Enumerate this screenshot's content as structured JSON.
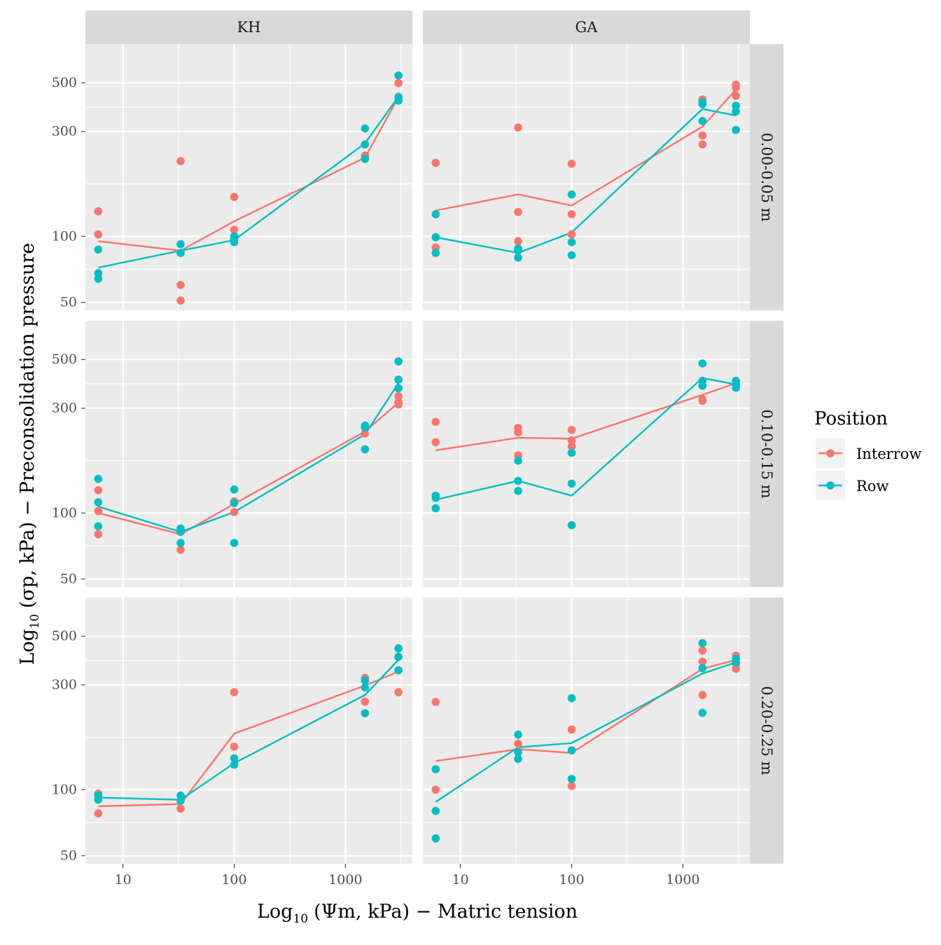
{
  "colors": {
    "Interrow": "#F8766D",
    "Row": "#00BFC4",
    "panel_bg": "#EBEBEB",
    "strip_bg": "#D9D9D9",
    "grid": "#FFFFFF"
  },
  "axis_text": {
    "x_prefix": "Log",
    "x_sub": "10",
    "x_rest": "(Ψm, kPa) − Matric tension",
    "y_prefix": "Log",
    "y_sub": "10",
    "y_rest": "(σp, kPa) − Preconsolidation pressure"
  },
  "legend": {
    "title": "Position",
    "items": [
      "Interrow",
      "Row"
    ]
  },
  "chart_data": {
    "type": "scatter",
    "facet_columns": [
      "KH",
      "GA"
    ],
    "facet_rows": [
      "0.00-0.05 m",
      "0.10-0.15 m",
      "0.20-0.25 m"
    ],
    "x_scale": "log10",
    "y_scale": "log10",
    "xlim": [
      4.6,
      4000
    ],
    "ylim": [
      46,
      750
    ],
    "x_ticks": [
      10,
      100,
      1000
    ],
    "x_tick_labels": [
      "10",
      "100",
      "1000"
    ],
    "y_ticks": [
      50,
      100,
      300,
      500
    ],
    "y_tick_labels": [
      "50",
      "100",
      "300",
      "500"
    ],
    "x_levels": [
      6,
      33,
      100,
      1500,
      3000
    ],
    "series_names": [
      "Interrow",
      "Row"
    ],
    "panels": [
      {
        "col": "KH",
        "row": "0.00-0.05 m",
        "points": {
          "Interrow": [
            [
              6,
              130
            ],
            [
              6,
              102
            ],
            [
              33,
              220
            ],
            [
              33,
              60
            ],
            [
              33,
              51
            ],
            [
              100,
              151
            ],
            [
              100,
              107
            ],
            [
              1500,
              233
            ],
            [
              3000,
              498
            ],
            [
              3000,
              432
            ]
          ],
          "Row": [
            [
              6,
              87
            ],
            [
              6,
              68
            ],
            [
              6,
              64
            ],
            [
              33,
              92
            ],
            [
              33,
              84
            ],
            [
              100,
              100
            ],
            [
              100,
              97
            ],
            [
              100,
              94
            ],
            [
              1500,
              310
            ],
            [
              1500,
              262
            ],
            [
              1500,
              225
            ],
            [
              3000,
              540
            ],
            [
              3000,
              415
            ],
            [
              3000,
              430
            ]
          ]
        },
        "lines": {
          "Interrow": [
            [
              6,
              95
            ],
            [
              33,
              86
            ],
            [
              100,
              117
            ],
            [
              1500,
              228
            ],
            [
              3000,
              430
            ]
          ],
          "Row": [
            [
              6,
              72
            ],
            [
              33,
              86
            ],
            [
              100,
              96
            ],
            [
              1500,
              265
            ],
            [
              3000,
              432
            ]
          ]
        }
      },
      {
        "col": "GA",
        "row": "0.00-0.05 m",
        "points": {
          "Interrow": [
            [
              6,
              216
            ],
            [
              6,
              89
            ],
            [
              33,
              313
            ],
            [
              33,
              129
            ],
            [
              33,
              95
            ],
            [
              100,
              214
            ],
            [
              100,
              126
            ],
            [
              100,
              102
            ],
            [
              1500,
              420
            ],
            [
              1500,
              288
            ],
            [
              1500,
              262
            ],
            [
              3000,
              490
            ],
            [
              3000,
              475
            ],
            [
              3000,
              436
            ]
          ],
          "Row": [
            [
              6,
              126
            ],
            [
              6,
              99
            ],
            [
              6,
              84
            ],
            [
              33,
              88
            ],
            [
              33,
              86
            ],
            [
              33,
              80
            ],
            [
              100,
              155
            ],
            [
              100,
              94
            ],
            [
              100,
              82
            ],
            [
              1500,
              408
            ],
            [
              1500,
              400
            ],
            [
              1500,
              335
            ],
            [
              3000,
              393
            ],
            [
              3000,
              370
            ],
            [
              3000,
              305
            ]
          ]
        },
        "lines": {
          "Interrow": [
            [
              6,
              131
            ],
            [
              33,
              155
            ],
            [
              100,
              138
            ],
            [
              1500,
              316
            ],
            [
              3000,
              465
            ]
          ],
          "Row": [
            [
              6,
              99
            ],
            [
              33,
              84
            ],
            [
              100,
              104
            ],
            [
              1500,
              380
            ],
            [
              3000,
              355
            ]
          ]
        }
      },
      {
        "col": "KH",
        "row": "0.10-0.15 m",
        "points": {
          "Interrow": [
            [
              6,
              127
            ],
            [
              6,
              102
            ],
            [
              6,
              80
            ],
            [
              33,
              68
            ],
            [
              100,
              113
            ],
            [
              100,
              101
            ],
            [
              1500,
              230
            ],
            [
              3000,
              340
            ],
            [
              3000,
              320
            ],
            [
              3000,
              312
            ]
          ],
          "Row": [
            [
              6,
              143
            ],
            [
              6,
              112
            ],
            [
              6,
              87
            ],
            [
              33,
              85
            ],
            [
              33,
              82
            ],
            [
              33,
              73
            ],
            [
              100,
              128
            ],
            [
              100,
              111
            ],
            [
              100,
              73
            ],
            [
              1500,
              250
            ],
            [
              1500,
              245
            ],
            [
              1500,
              195
            ],
            [
              3000,
              490
            ],
            [
              3000,
              405
            ],
            [
              3000,
              370
            ]
          ]
        },
        "lines": {
          "Interrow": [
            [
              6,
              100
            ],
            [
              33,
              80
            ],
            [
              100,
              110
            ],
            [
              1500,
              235
            ],
            [
              3000,
              318
            ]
          ],
          "Row": [
            [
              6,
              107
            ],
            [
              33,
              82
            ],
            [
              100,
              101
            ],
            [
              1500,
              228
            ],
            [
              3000,
              390
            ]
          ]
        }
      },
      {
        "col": "GA",
        "row": "0.10-0.15 m",
        "points": {
          "Interrow": [
            [
              6,
              260
            ],
            [
              6,
              210
            ],
            [
              33,
              244
            ],
            [
              33,
              233
            ],
            [
              33,
              183
            ],
            [
              100,
              239
            ],
            [
              100,
              214
            ],
            [
              100,
              201
            ],
            [
              1500,
              330
            ],
            [
              1500,
              324
            ]
          ],
          "Row": [
            [
              6,
              120
            ],
            [
              6,
              117
            ],
            [
              6,
              105
            ],
            [
              33,
              173
            ],
            [
              33,
              140
            ],
            [
              33,
              126
            ],
            [
              100,
              188
            ],
            [
              100,
              136
            ],
            [
              100,
              88
            ],
            [
              1500,
              480
            ],
            [
              1500,
              400
            ],
            [
              1500,
              380
            ],
            [
              3000,
              400
            ],
            [
              3000,
              385
            ],
            [
              3000,
              372
            ]
          ]
        },
        "lines": {
          "Interrow": [
            [
              6,
              193
            ],
            [
              33,
              220
            ],
            [
              100,
              218
            ],
            [
              1500,
              345
            ],
            [
              3000,
              390
            ]
          ],
          "Row": [
            [
              6,
              115
            ],
            [
              33,
              140
            ],
            [
              100,
              120
            ],
            [
              1500,
              412
            ],
            [
              3000,
              385
            ]
          ]
        }
      },
      {
        "col": "KH",
        "row": "0.20-0.25 m",
        "points": {
          "Interrow": [
            [
              6,
              96
            ],
            [
              6,
              78
            ],
            [
              33,
              82
            ],
            [
              100,
              278
            ],
            [
              100,
              157
            ],
            [
              1500,
              323
            ],
            [
              1500,
              252
            ],
            [
              3000,
              350
            ],
            [
              3000,
              278
            ]
          ],
          "Row": [
            [
              6,
              94
            ],
            [
              6,
              90
            ],
            [
              33,
              94
            ],
            [
              33,
              89
            ],
            [
              100,
              139
            ],
            [
              100,
              130
            ],
            [
              1500,
              314
            ],
            [
              1500,
              292
            ],
            [
              1500,
              223
            ],
            [
              3000,
              440
            ],
            [
              3000,
              403
            ],
            [
              3000,
              350
            ]
          ]
        },
        "lines": {
          "Interrow": [
            [
              6,
              84
            ],
            [
              33,
              86
            ],
            [
              100,
              180
            ],
            [
              1500,
              298
            ],
            [
              3000,
              345
            ]
          ],
          "Row": [
            [
              6,
              92
            ],
            [
              33,
              90
            ],
            [
              100,
              132
            ],
            [
              1500,
              270
            ],
            [
              3000,
              390
            ]
          ]
        }
      },
      {
        "col": "GA",
        "row": "0.20-0.25 m",
        "points": {
          "Interrow": [
            [
              6,
              251
            ],
            [
              6,
              100
            ],
            [
              33,
              162
            ],
            [
              33,
              149
            ],
            [
              100,
              188
            ],
            [
              100,
              104
            ],
            [
              1500,
              430
            ],
            [
              1500,
              383
            ],
            [
              1500,
              270
            ],
            [
              3000,
              408
            ],
            [
              3000,
              375
            ],
            [
              3000,
              355
            ]
          ],
          "Row": [
            [
              6,
              124
            ],
            [
              6,
              80
            ],
            [
              6,
              60
            ],
            [
              33,
              178
            ],
            [
              33,
              148
            ],
            [
              33,
              138
            ],
            [
              100,
              261
            ],
            [
              100,
              151
            ],
            [
              100,
              112
            ],
            [
              1500,
              465
            ],
            [
              1500,
              358
            ],
            [
              1500,
              224
            ],
            [
              3000,
              395
            ],
            [
              3000,
              380
            ]
          ]
        },
        "lines": {
          "Interrow": [
            [
              6,
              135
            ],
            [
              33,
              153
            ],
            [
              100,
              147
            ],
            [
              1500,
              355
            ],
            [
              3000,
              390
            ]
          ],
          "Row": [
            [
              6,
              88
            ],
            [
              33,
              156
            ],
            [
              100,
              163
            ],
            [
              1500,
              338
            ],
            [
              3000,
              380
            ]
          ]
        }
      }
    ]
  }
}
